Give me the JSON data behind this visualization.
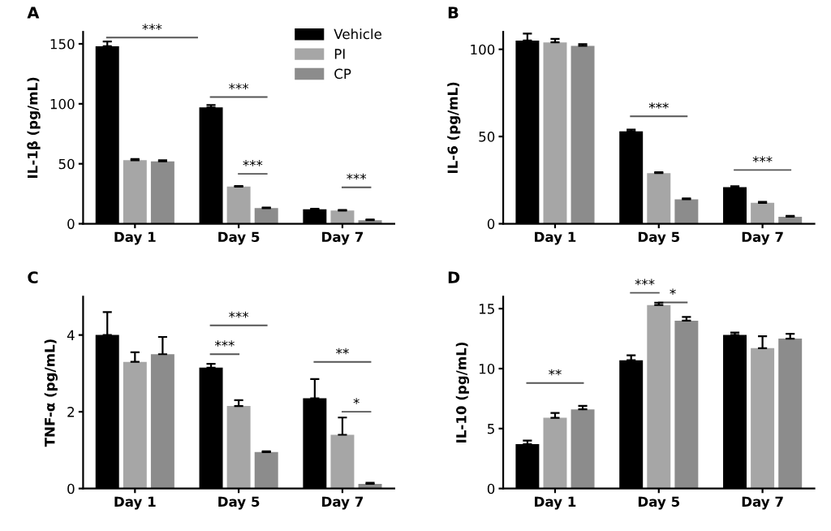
{
  "chart_data": [
    {
      "type": "bar",
      "title": "A",
      "ylabel": "IL-1β (pg/mL)",
      "categories": [
        "Day 1",
        "Day 5",
        "Day 7"
      ],
      "ylim": [
        0,
        160
      ],
      "yticks": [
        0,
        50,
        100,
        150
      ],
      "grid": false,
      "legend": "top right",
      "series": [
        {
          "name": "Vehicle",
          "color": "#000000",
          "values": [
            148,
            97,
            12
          ],
          "errors": [
            4,
            2,
            0.5
          ]
        },
        {
          "name": "PI",
          "color": "#a6a6a6",
          "values": [
            53,
            31,
            11
          ],
          "errors": [
            1,
            0.5,
            0.5
          ]
        },
        {
          "name": "CP",
          "color": "#8c8c8c",
          "values": [
            52,
            13,
            3
          ],
          "errors": [
            1,
            0.5,
            0.5
          ]
        }
      ],
      "annotations": [
        "***",
        "***",
        "***",
        "***"
      ]
    },
    {
      "type": "bar",
      "title": "B",
      "ylabel": "IL-6 (pg/mL)",
      "categories": [
        "Day 1",
        "Day 5",
        "Day 7"
      ],
      "ylim": [
        0,
        110
      ],
      "yticks": [
        0,
        50,
        100
      ],
      "grid": false,
      "series": [
        {
          "color": "#000000",
          "values": [
            105,
            53,
            21
          ],
          "errors": [
            4,
            1,
            0.5
          ]
        },
        {
          "color": "#a6a6a6",
          "values": [
            104,
            29,
            12
          ],
          "errors": [
            2,
            0.5,
            0.5
          ]
        },
        {
          "color": "#8c8c8c",
          "values": [
            102,
            14,
            4
          ],
          "errors": [
            1,
            0.5,
            0.5
          ]
        }
      ],
      "annotations": [
        "***",
        "***"
      ]
    },
    {
      "type": "bar",
      "title": "C",
      "ylabel": "TNF-α (pg/mL)",
      "categories": [
        "Day 1",
        "Day 5",
        "Day 7"
      ],
      "ylim": [
        0,
        5
      ],
      "yticks": [
        0,
        2,
        4
      ],
      "grid": false,
      "series": [
        {
          "color": "#000000",
          "values": [
            4.0,
            3.15,
            2.35
          ],
          "errors": [
            0.6,
            0.1,
            0.5
          ]
        },
        {
          "color": "#a6a6a6",
          "values": [
            3.3,
            2.15,
            1.4
          ],
          "errors": [
            0.25,
            0.15,
            0.45
          ]
        },
        {
          "color": "#8c8c8c",
          "values": [
            3.5,
            0.95,
            0.12
          ],
          "errors": [
            0.45,
            0.02,
            0.03
          ]
        }
      ],
      "annotations": [
        "***",
        "***",
        "**",
        "*"
      ]
    },
    {
      "type": "bar",
      "title": "D",
      "ylabel": "IL-10 (pg/mL)",
      "categories": [
        "Day 1",
        "Day 5",
        "Day 7"
      ],
      "ylim": [
        0,
        16
      ],
      "yticks": [
        0,
        5,
        10,
        15
      ],
      "grid": false,
      "series": [
        {
          "color": "#000000",
          "values": [
            3.7,
            10.7,
            12.8
          ],
          "errors": [
            0.3,
            0.4,
            0.2
          ]
        },
        {
          "color": "#a6a6a6",
          "values": [
            5.9,
            15.3,
            11.7
          ],
          "errors": [
            0.4,
            0.2,
            1.0
          ]
        },
        {
          "color": "#8c8c8c",
          "values": [
            6.6,
            14.0,
            12.5
          ],
          "errors": [
            0.3,
            0.3,
            0.4
          ]
        }
      ],
      "annotations": [
        "**",
        "***",
        "*"
      ]
    }
  ]
}
